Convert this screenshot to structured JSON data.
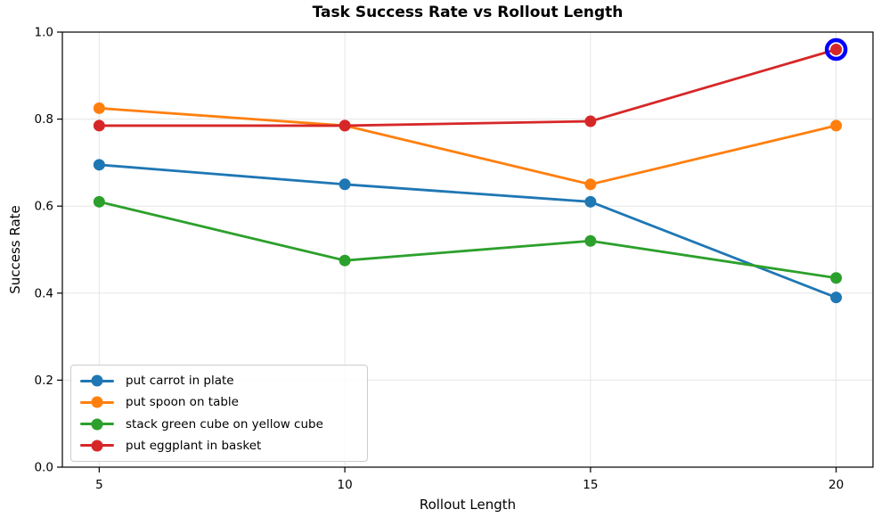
{
  "figure": {
    "title": "Task Success Rate vs Rollout Length",
    "xlabel": "Rollout Length",
    "ylabel": "Success Rate"
  },
  "chart_data": {
    "type": "line",
    "title": "Task Success Rate vs Rollout Length",
    "xlabel": "Rollout Length",
    "ylabel": "Success Rate",
    "x": [
      5,
      10,
      15,
      20
    ],
    "xticks": [
      "5",
      "10",
      "15",
      "20"
    ],
    "yticks": [
      0.0,
      0.2,
      0.4,
      0.6,
      0.8,
      1.0
    ],
    "xlim": [
      4.25,
      20.75
    ],
    "ylim": [
      0.0,
      1.0
    ],
    "grid": true,
    "legend_position": "lower left",
    "series": [
      {
        "name": "put carrot in plate",
        "color": "#1f77b4",
        "values": [
          0.695,
          0.65,
          0.61,
          0.39
        ]
      },
      {
        "name": "put spoon on table",
        "color": "#ff7f0e",
        "values": [
          0.825,
          0.785,
          0.65,
          0.785
        ]
      },
      {
        "name": "stack green cube on yellow cube",
        "color": "#2ca02c",
        "values": [
          0.61,
          0.475,
          0.52,
          0.435
        ]
      },
      {
        "name": "put eggplant in basket",
        "color": "#d62728",
        "values": [
          0.785,
          0.785,
          0.795,
          0.96
        ]
      }
    ],
    "highlight": {
      "series": "put eggplant in basket",
      "x": 20,
      "y": 0.96,
      "ring_color": "#0000ff"
    }
  },
  "style": {
    "grid_color": "#e5e5e5",
    "axis_color": "#000000",
    "background": "#ffffff",
    "legend_border": "#cccccc",
    "line_width": 2.8,
    "marker_radius": 6.5,
    "ring_radius": 10.5,
    "ring_width": 4.5
  }
}
